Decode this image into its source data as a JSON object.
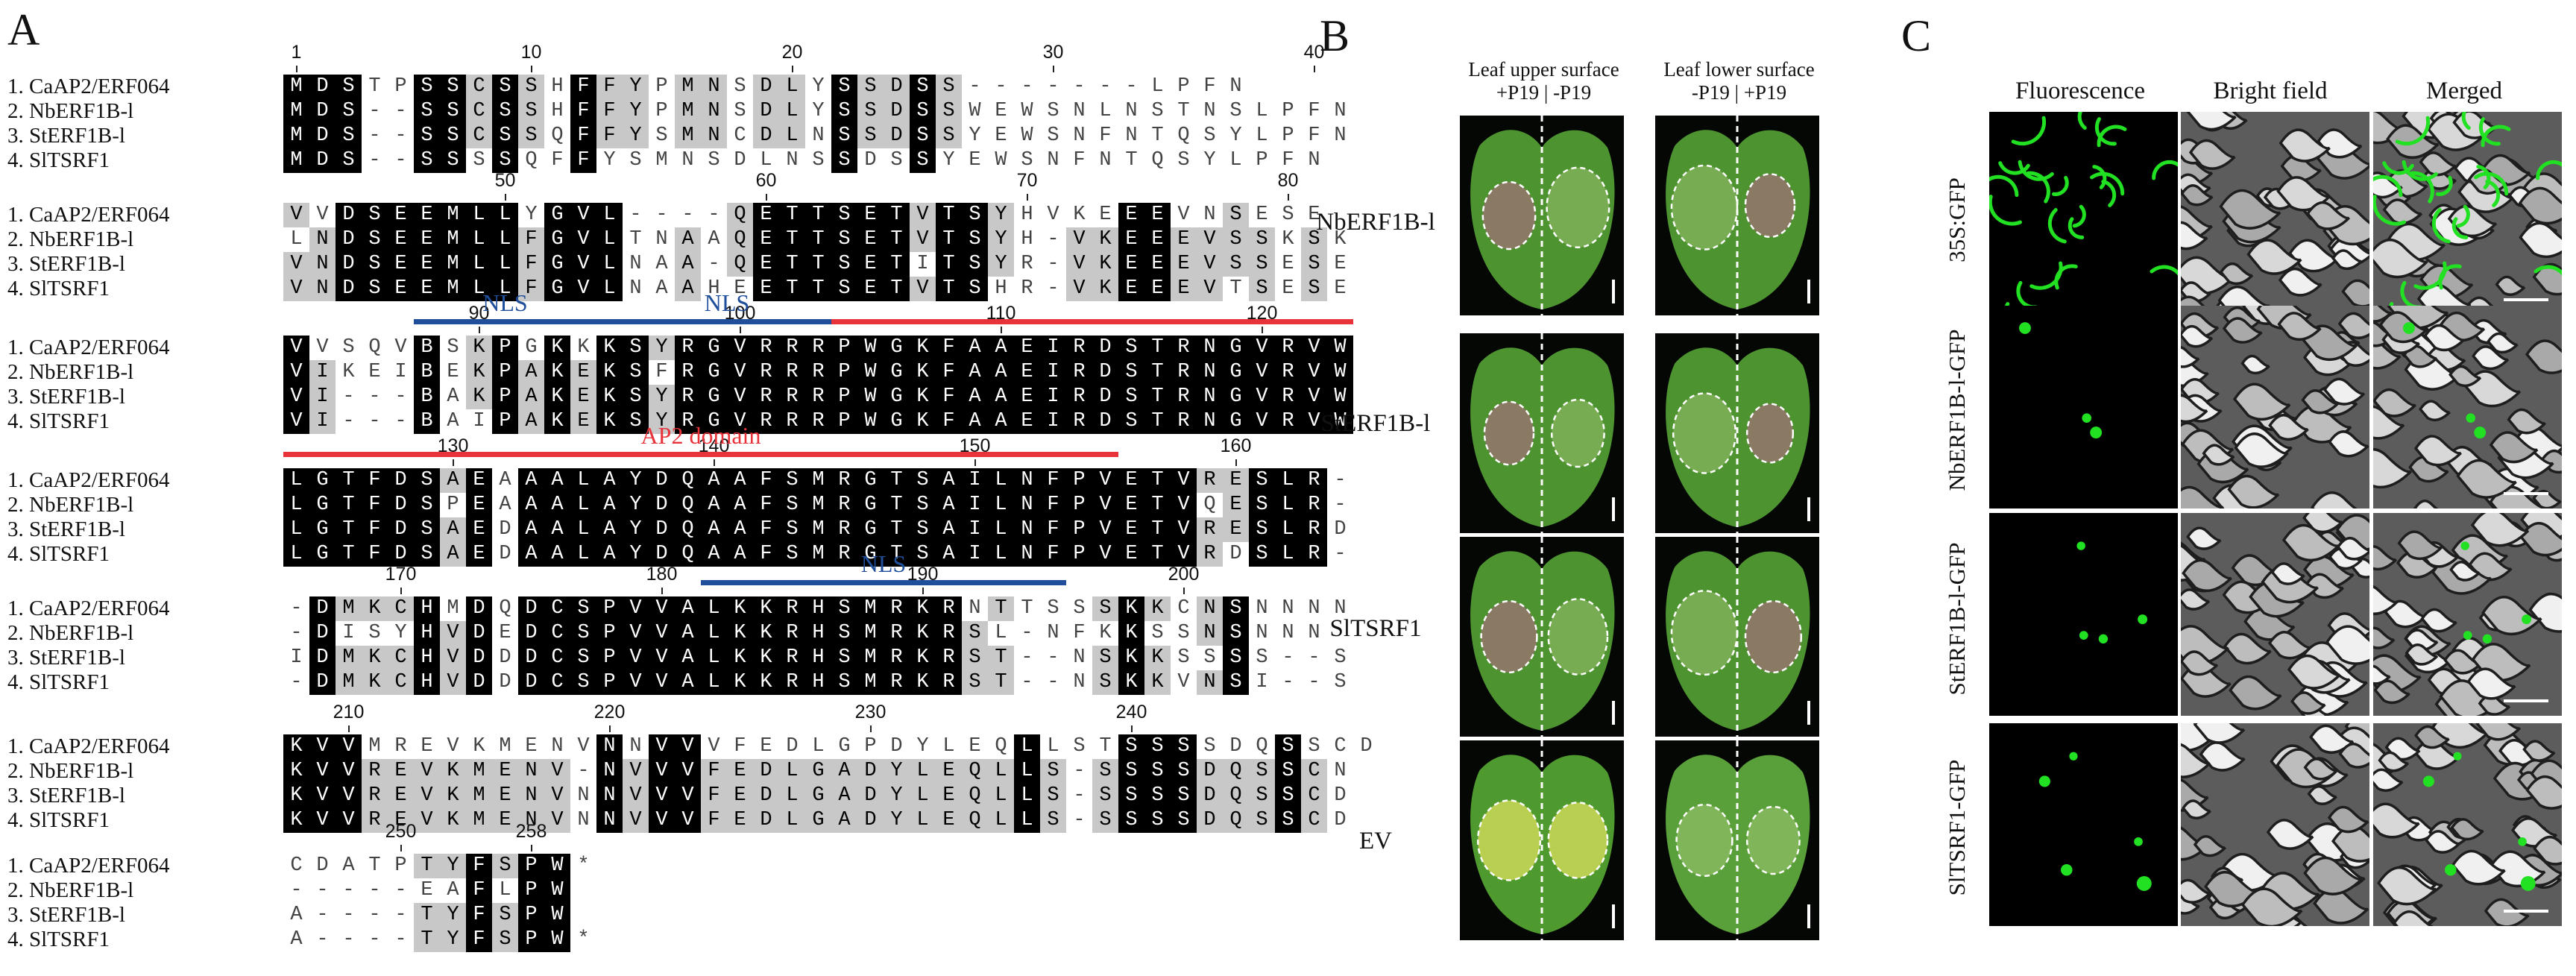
{
  "panelA": {
    "letter": "A",
    "names": [
      "1. CaAP2/ERF064",
      "2. NbERF1B-l",
      "3. StERF1B-l",
      "4. SlTSRF1"
    ],
    "blocks": [
      {
        "rows": [
          "MDSTPSSCSSHFFYPMNSDLYSSDSS-------LPFN",
          "MDS--SSCSSHFFYPMNSDLYSSDSSWEWSNLNSTNSLPFN",
          "MDS--SSCSSQFFYSMNCDLNSSDSSYEWSNFNTQSYLPFN",
          "MDS--SSSSQFFYSMNSDLNSSDSSYEWSNFNTQSYLPFN"
        ],
        "numbers": [
          {
            "t": "1",
            "c": 1
          },
          {
            "t": "10",
            "c": 10
          },
          {
            "t": "20",
            "c": 20
          },
          {
            "t": "30",
            "c": 30
          },
          {
            "t": "40",
            "c": 40
          }
        ]
      },
      {
        "rows": [
          "VVDSEEMLLYGVL----QETTSETVTSYHVKEEEVNSESE",
          "LNDSEEMLLFGVLTNAAQETTSETVTSYH-VKEEEVSSKSK",
          "VNDSEEMLLFGVLNAA-QETTSETITSYR-VKEEEVSSESE",
          "VNDSEEMLLFGVLNAAHEETTSETVTSHR-VKEEEVTSESE"
        ],
        "numbers": [
          {
            "t": "50",
            "c": 9
          },
          {
            "t": "60",
            "c": 19
          },
          {
            "t": "70",
            "c": 29
          },
          {
            "t": "80",
            "c": 39
          }
        ]
      },
      {
        "rows": [
          "VVSQVBSKPGKKKSYRGVRRRPWGKFAAEIRDSTRNGVRVW",
          "VIKEIBEKPAKEKSFRGVRRRPWGKFAAEIRDSTRNGVRVW",
          "VI---BAKPAKEKSYRGVRRRPWGKFAAEIRDSTRNGVRVW",
          "VI---BAIPAKEKSYRGVRRRPWGKFAAEIRDSTRNGVRVW"
        ],
        "numbers": [
          {
            "t": "90",
            "c": 8
          },
          {
            "t": "100",
            "c": 18
          },
          {
            "t": "110",
            "c": 28
          },
          {
            "t": "120",
            "c": 38
          }
        ],
        "features": [
          {
            "label": "NLS",
            "start": 6,
            "end": 12,
            "color": "#1f4e9a"
          },
          {
            "label": "NLS",
            "start": 13,
            "end": 22,
            "color": "#1f4e9a"
          },
          {
            "label": "",
            "start": 22,
            "end": 41,
            "color": "#e8333a"
          }
        ]
      },
      {
        "rows": [
          "LGTFDSAEAAALAYDQAAFSMRGTSAILNFPVETVRESLR-",
          "LGTFDSPEAAALAYDQAAFSMRGTSAILNFPVETVQESLR-",
          "LGTFDSAEDAALAYDQAAFSMRGTSAILNFPVETVRESLRD",
          "LGTFDSAEDAALAYDQAAFSMRGTSAILNFPVETVRDSLR-"
        ],
        "numbers": [
          {
            "t": "130",
            "c": 7
          },
          {
            "t": "140",
            "c": 17
          },
          {
            "t": "150",
            "c": 27
          },
          {
            "t": "160",
            "c": 37
          }
        ],
        "features": [
          {
            "label": "AP2 domain",
            "start": 1,
            "end": 32,
            "color": "#e8333a"
          }
        ]
      },
      {
        "rows": [
          "-DMKCHMDQDCSPVVALKKRHSMRKRNTTSSSKKCNSNNNN",
          "-DISYHVDEDCSPVVALKKRHSMRKRSL-NFKKSSNSNNN",
          "IDMKCHVDDDCSPVVALKKRHSMRKRST--NSKKSSSS--S",
          "-DMKCHVDDDCSPVVALKKRHSMRKRST--NSKKVNSI--S"
        ],
        "numbers": [
          {
            "t": "170",
            "c": 5
          },
          {
            "t": "180",
            "c": 15
          },
          {
            "t": "190",
            "c": 25
          },
          {
            "t": "200",
            "c": 35
          }
        ],
        "features": [
          {
            "label": "NLS",
            "start": 17,
            "end": 30,
            "color": "#1f4e9a"
          }
        ]
      },
      {
        "rows": [
          "KVVMREVKMENVNNVVVFEDLGPDYLEQLLSTSSSSDQSSCD",
          "KVVREVKMENV-NVVVFEDLGADYLEQLLS-SSSSDQSSCN",
          "KVVREVKMENVNNVVVFEDLGADYLEQLLS-SSSSDQSSCD",
          "KVVREVKMENVNNVVVFEDLGADYLEQLLS-SSSSDQSSCD"
        ],
        "numbers": [
          {
            "t": "210",
            "c": 3
          },
          {
            "t": "220",
            "c": 13
          },
          {
            "t": "230",
            "c": 23
          },
          {
            "t": "240",
            "c": 33
          }
        ]
      },
      {
        "rows": [
          "CDATPTYFSPW*",
          "-----EAFLPW",
          "A----TYFSPW",
          "A----TYFSPW*"
        ],
        "numbers": [
          {
            "t": "250",
            "c": 5
          },
          {
            "t": "258",
            "c": 10
          }
        ]
      }
    ]
  },
  "panelB": {
    "letter": "B",
    "col_heads": [
      {
        "line1": "Leaf upper surface",
        "line2": "+P19 | -P19"
      },
      {
        "line1": "Leaf lower surface",
        "line2": "-P19 | +P19"
      }
    ],
    "rows": [
      "NbERF1B-l",
      "StERF1B-l",
      "SlTSRF1",
      "EV"
    ]
  },
  "panelC": {
    "letter": "C",
    "col_heads": [
      "Fluorescence",
      "Bright field",
      "Merged"
    ],
    "rows": [
      "35S:GFP",
      "NbERF1B-l-GFP",
      "StERF1B-l-GFP",
      "SlTSRF1-GFP"
    ],
    "colors": {
      "gfp": "#22e022"
    }
  }
}
